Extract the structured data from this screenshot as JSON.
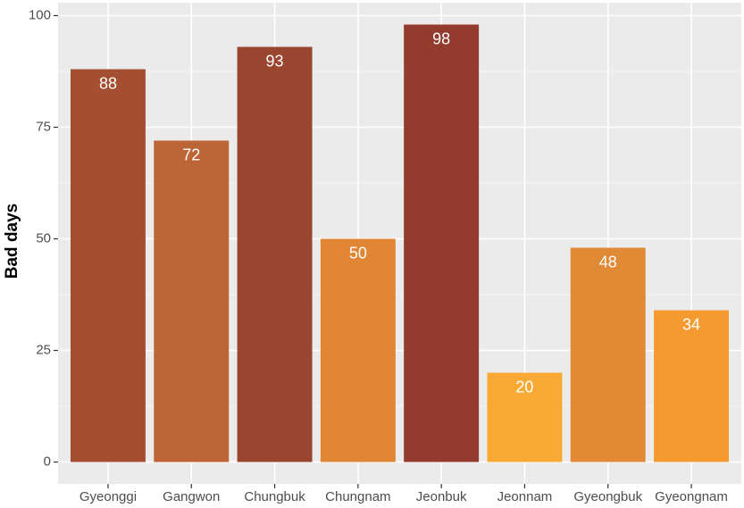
{
  "chart_data": {
    "type": "bar",
    "y_label": "Bad days",
    "categories": [
      "Gyeonggi",
      "Gangwon",
      "Chungbuk",
      "Chungnam",
      "Jeonbuk",
      "Jeonnam",
      "Gyeongbuk",
      "Gyeongnam"
    ],
    "values": [
      88,
      72,
      93,
      50,
      98,
      20,
      48,
      34
    ],
    "colors": [
      "#a44f32",
      "#bd6536",
      "#9a4530",
      "#e08634",
      "#943b2f",
      "#f9aa34",
      "#e08a36",
      "#f59a2e"
    ],
    "ylim": [
      -4.9,
      102.9
    ],
    "yticks": [
      0,
      25,
      50,
      75,
      100
    ],
    "grid": true
  }
}
